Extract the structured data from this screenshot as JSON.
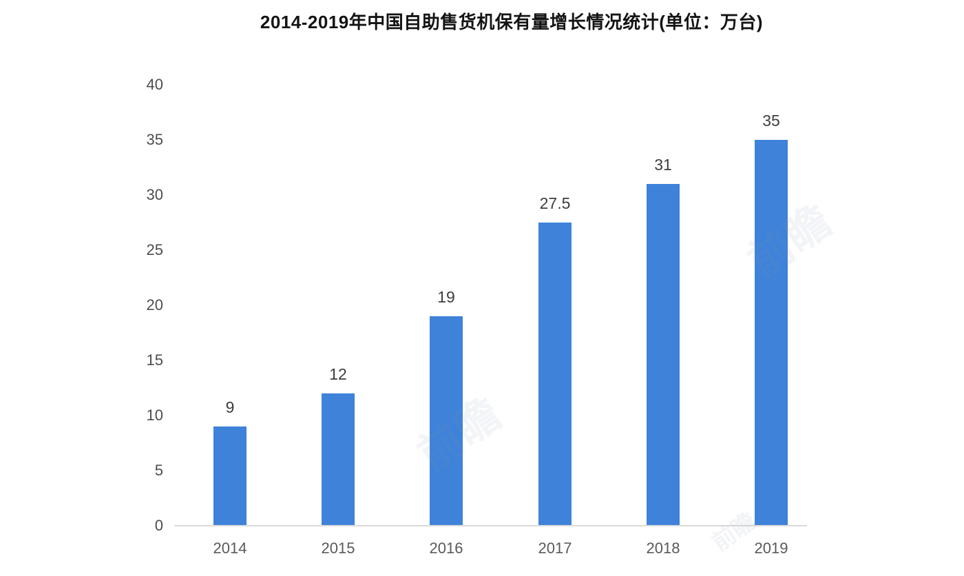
{
  "chart_data": {
    "type": "bar",
    "title": "2014-2019年中国自助售货机保有量增长情况统计(单位：万台)",
    "categories": [
      "2014",
      "2015",
      "2016",
      "2017",
      "2018",
      "2019"
    ],
    "values": [
      9,
      12,
      19,
      27.5,
      31,
      35
    ],
    "value_labels": [
      "9",
      "12",
      "19",
      "27.5",
      "31",
      "35"
    ],
    "xlabel": "",
    "ylabel": "",
    "ylim": [
      0,
      40
    ],
    "y_ticks": [
      0,
      5,
      10,
      15,
      20,
      25,
      30,
      35,
      40
    ],
    "grid": false,
    "legend_position": "none",
    "bar_color": "#3E82D9",
    "axis_line_color": "#dadada",
    "tick_label_color": "#4d4d4d",
    "value_label_color": "#3d3d3d",
    "title_color": "#141414"
  },
  "watermark": {
    "text": "前瞻"
  }
}
